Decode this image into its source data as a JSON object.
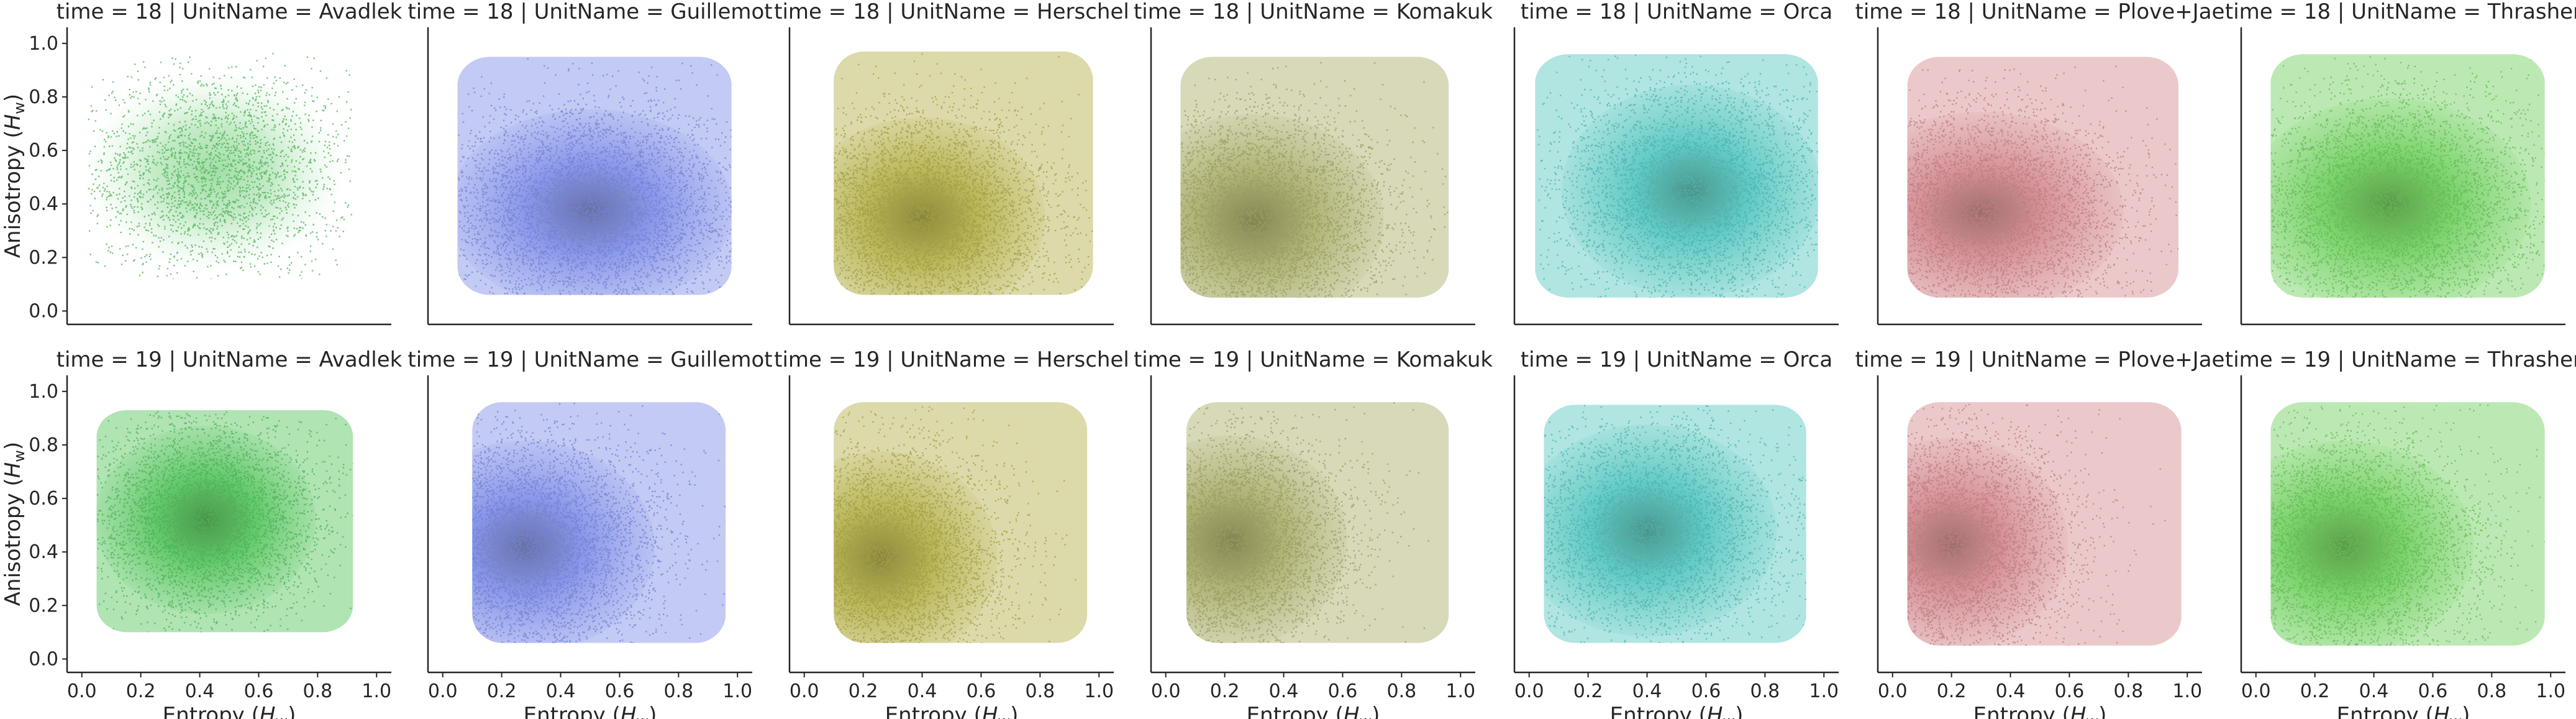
{
  "chart_data": {
    "type": "scatter",
    "kind": "faceted scatter / density grid",
    "facet_title_template": "time = {time} | UnitName = {unit}",
    "rows": [
      18,
      19
    ],
    "columns": [
      "Avadlek",
      "Guillemot",
      "Herschel",
      "Komakuk",
      "Orca",
      "Plove+Jae",
      "Thrasher"
    ],
    "xlabel": "Entropy (H_w)",
    "xlabel_text": "Entropy (",
    "xlabel_sym": "H",
    "xlabel_sub": "w",
    "ylabel": "Anisotropy (H_w)",
    "ylabel_text": "Anisotropy (",
    "ylabel_sym": "H",
    "ylabel_sub": "w",
    "xlim": [
      -0.05,
      1.05
    ],
    "ylim": [
      -0.05,
      1.06
    ],
    "xticks": [
      0.0,
      0.2,
      0.4,
      0.6,
      0.8,
      1.0
    ],
    "xtick_labels": [
      "0.0",
      "0.2",
      "0.4",
      "0.6",
      "0.8",
      "1.0"
    ],
    "yticks": [
      0.0,
      0.2,
      0.4,
      0.6,
      0.8,
      1.0
    ],
    "ytick_labels": [
      "0.0",
      "0.2",
      "0.4",
      "0.6",
      "0.8",
      "1.0"
    ],
    "colors": {
      "Avadlek": "#55c45e",
      "Guillemot": "#7f8fe8",
      "Herschel": "#b4b04a",
      "Komakuk": "#a9ad6a",
      "Orca": "#55c6c0",
      "Plove+Jae": "#d38a90",
      "Thrasher": "#6fcf5e"
    },
    "series": [
      {
        "time": 18,
        "unit": "Avadlek",
        "center": [
          0.45,
          0.52
        ],
        "spread": [
          0.2,
          0.17
        ],
        "x_range": [
          0.02,
          0.92
        ],
        "y_range": [
          0.12,
          0.97
        ],
        "density": "sparse"
      },
      {
        "time": 18,
        "unit": "Guillemot",
        "center": [
          0.5,
          0.38
        ],
        "spread": [
          0.22,
          0.17
        ],
        "x_range": [
          0.05,
          0.98
        ],
        "y_range": [
          0.06,
          0.95
        ],
        "density": "dense"
      },
      {
        "time": 18,
        "unit": "Herschel",
        "center": [
          0.4,
          0.35
        ],
        "spread": [
          0.19,
          0.17
        ],
        "x_range": [
          0.1,
          0.98
        ],
        "y_range": [
          0.06,
          0.97
        ],
        "density": "dense"
      },
      {
        "time": 18,
        "unit": "Komakuk",
        "center": [
          0.3,
          0.34
        ],
        "spread": [
          0.2,
          0.18
        ],
        "x_range": [
          0.05,
          0.96
        ],
        "y_range": [
          0.05,
          0.95
        ],
        "density": "dense"
      },
      {
        "time": 18,
        "unit": "Orca",
        "center": [
          0.55,
          0.45
        ],
        "spread": [
          0.2,
          0.18
        ],
        "x_range": [
          0.02,
          0.98
        ],
        "y_range": [
          0.05,
          0.96
        ],
        "density": "medium"
      },
      {
        "time": 18,
        "unit": "Plove+Jae",
        "center": [
          0.3,
          0.37
        ],
        "spread": [
          0.22,
          0.17
        ],
        "x_range": [
          0.05,
          0.97
        ],
        "y_range": [
          0.05,
          0.95
        ],
        "density": "dense"
      },
      {
        "time": 18,
        "unit": "Thrasher",
        "center": [
          0.45,
          0.4
        ],
        "spread": [
          0.22,
          0.18
        ],
        "x_range": [
          0.05,
          0.98
        ],
        "y_range": [
          0.05,
          0.96
        ],
        "density": "dense"
      },
      {
        "time": 19,
        "unit": "Avadlek",
        "center": [
          0.42,
          0.52
        ],
        "spread": [
          0.17,
          0.16
        ],
        "x_range": [
          0.05,
          0.92
        ],
        "y_range": [
          0.1,
          0.93
        ],
        "density": "medium"
      },
      {
        "time": 19,
        "unit": "Guillemot",
        "center": [
          0.28,
          0.42
        ],
        "spread": [
          0.2,
          0.18
        ],
        "x_range": [
          0.1,
          0.96
        ],
        "y_range": [
          0.06,
          0.96
        ],
        "density": "dense"
      },
      {
        "time": 19,
        "unit": "Herschel",
        "center": [
          0.26,
          0.38
        ],
        "spread": [
          0.18,
          0.18
        ],
        "x_range": [
          0.1,
          0.96
        ],
        "y_range": [
          0.06,
          0.96
        ],
        "density": "dense"
      },
      {
        "time": 19,
        "unit": "Komakuk",
        "center": [
          0.22,
          0.44
        ],
        "spread": [
          0.18,
          0.18
        ],
        "x_range": [
          0.07,
          0.96
        ],
        "y_range": [
          0.06,
          0.96
        ],
        "density": "dense"
      },
      {
        "time": 19,
        "unit": "Orca",
        "center": [
          0.4,
          0.48
        ],
        "spread": [
          0.2,
          0.18
        ],
        "x_range": [
          0.05,
          0.94
        ],
        "y_range": [
          0.06,
          0.95
        ],
        "density": "medium"
      },
      {
        "time": 19,
        "unit": "Plove+Jae",
        "center": [
          0.2,
          0.43
        ],
        "spread": [
          0.18,
          0.18
        ],
        "x_range": [
          0.05,
          0.98
        ],
        "y_range": [
          0.05,
          0.96
        ],
        "density": "dense"
      },
      {
        "time": 19,
        "unit": "Thrasher",
        "center": [
          0.3,
          0.42
        ],
        "spread": [
          0.2,
          0.18
        ],
        "x_range": [
          0.05,
          0.98
        ],
        "y_range": [
          0.05,
          0.96
        ],
        "density": "dense"
      }
    ]
  }
}
